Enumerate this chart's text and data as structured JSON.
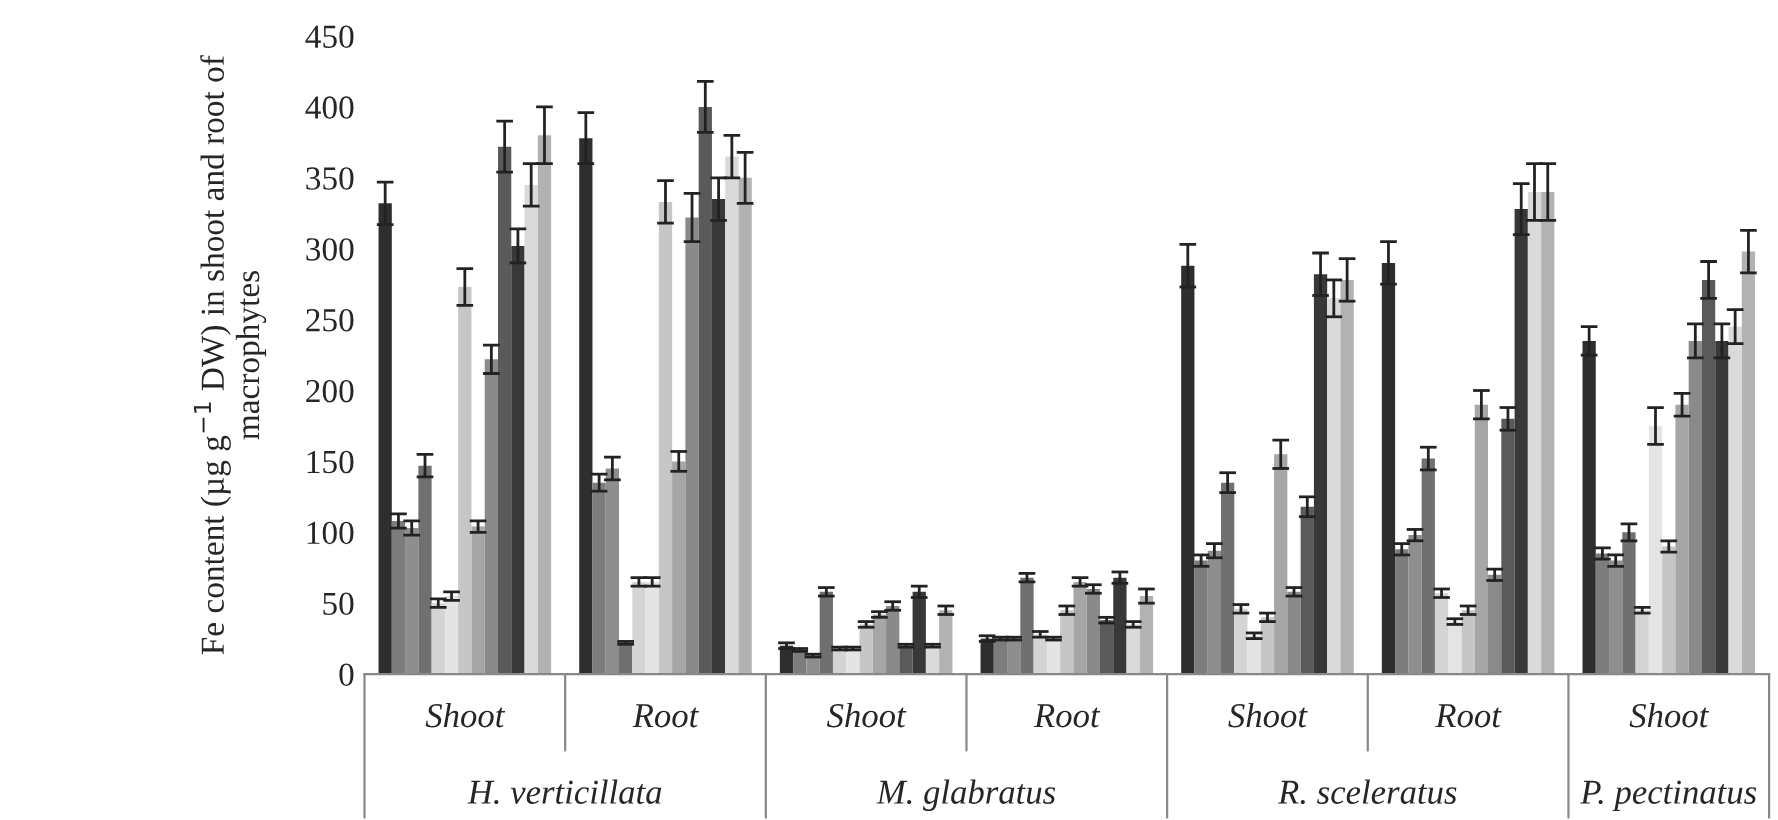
{
  "chart_data": {
    "type": "bar",
    "ylabel": "Fe content (µg g$^{−1}$ DW) in shoot and root of macrophytes",
    "categories": [
      "Shoot",
      "Root",
      "Shoot",
      "Root",
      "Shoot",
      "Root",
      "Shoot"
    ],
    "annotations": [
      "H. verticillata",
      "M. glabratus",
      "R. sceleratus",
      "P. pectinatus"
    ],
    "ylim": [
      0,
      450
    ],
    "yticks": [
      0,
      50,
      100,
      150,
      200,
      250,
      300,
      350,
      400,
      450
    ],
    "grid": false,
    "series": [
      {
        "color": "#2e2e2e",
        "values": [
          332,
          378,
          20,
          25,
          288,
          290,
          235
        ],
        "errors": [
          15,
          18,
          2,
          2,
          15,
          15,
          10
        ]
      },
      {
        "color": "#7c7c7c",
        "values": [
          108,
          135,
          17,
          25,
          80,
          88,
          85
        ],
        "errors": [
          5,
          6,
          1,
          1,
          4,
          4,
          4
        ]
      },
      {
        "color": "#8e8e8e",
        "values": [
          103,
          145,
          13,
          25,
          87,
          98,
          80
        ],
        "errors": [
          5,
          8,
          1,
          1,
          5,
          4,
          4
        ]
      },
      {
        "color": "#707070",
        "values": [
          147,
          22,
          58,
          68,
          135,
          152,
          100
        ],
        "errors": [
          8,
          1,
          3,
          3,
          7,
          8,
          6
        ]
      },
      {
        "color": "#d4d4d4",
        "values": [
          50,
          65,
          18,
          28,
          46,
          57,
          45
        ],
        "errors": [
          3,
          3,
          1,
          2,
          3,
          3,
          2
        ]
      },
      {
        "color": "#e4e4e4",
        "values": [
          55,
          65,
          18,
          25,
          27,
          37,
          175
        ],
        "errors": [
          3,
          3,
          1,
          1,
          2,
          2,
          13
        ]
      },
      {
        "color": "#c6c6c6",
        "values": [
          273,
          333,
          35,
          45,
          40,
          45,
          90
        ],
        "errors": [
          13,
          15,
          2,
          3,
          3,
          3,
          4
        ]
      },
      {
        "color": "#a6a6a6",
        "values": [
          104,
          150,
          42,
          65,
          155,
          190,
          190
        ],
        "errors": [
          4,
          7,
          2,
          3,
          10,
          10,
          8
        ]
      },
      {
        "color": "#8a8a8a",
        "values": [
          222,
          322,
          48,
          60,
          58,
          70,
          235
        ],
        "errors": [
          10,
          17,
          3,
          3,
          3,
          4,
          12
        ]
      },
      {
        "color": "#5a5a5a",
        "values": [
          372,
          400,
          20,
          38,
          118,
          180,
          278
        ],
        "errors": [
          18,
          18,
          1,
          2,
          7,
          8,
          13
        ]
      },
      {
        "color": "#383838",
        "values": [
          302,
          335,
          58,
          68,
          282,
          328,
          235
        ],
        "errors": [
          12,
          15,
          4,
          4,
          15,
          18,
          12
        ]
      },
      {
        "color": "#dadada",
        "values": [
          345,
          365,
          20,
          35,
          265,
          340,
          245
        ],
        "errors": [
          15,
          15,
          1,
          2,
          13,
          20,
          12
        ]
      },
      {
        "color": "#b2b2b2",
        "values": [
          380,
          350,
          45,
          55,
          278,
          340,
          298
        ],
        "errors": [
          20,
          18,
          3,
          5,
          15,
          20,
          15
        ]
      }
    ]
  }
}
